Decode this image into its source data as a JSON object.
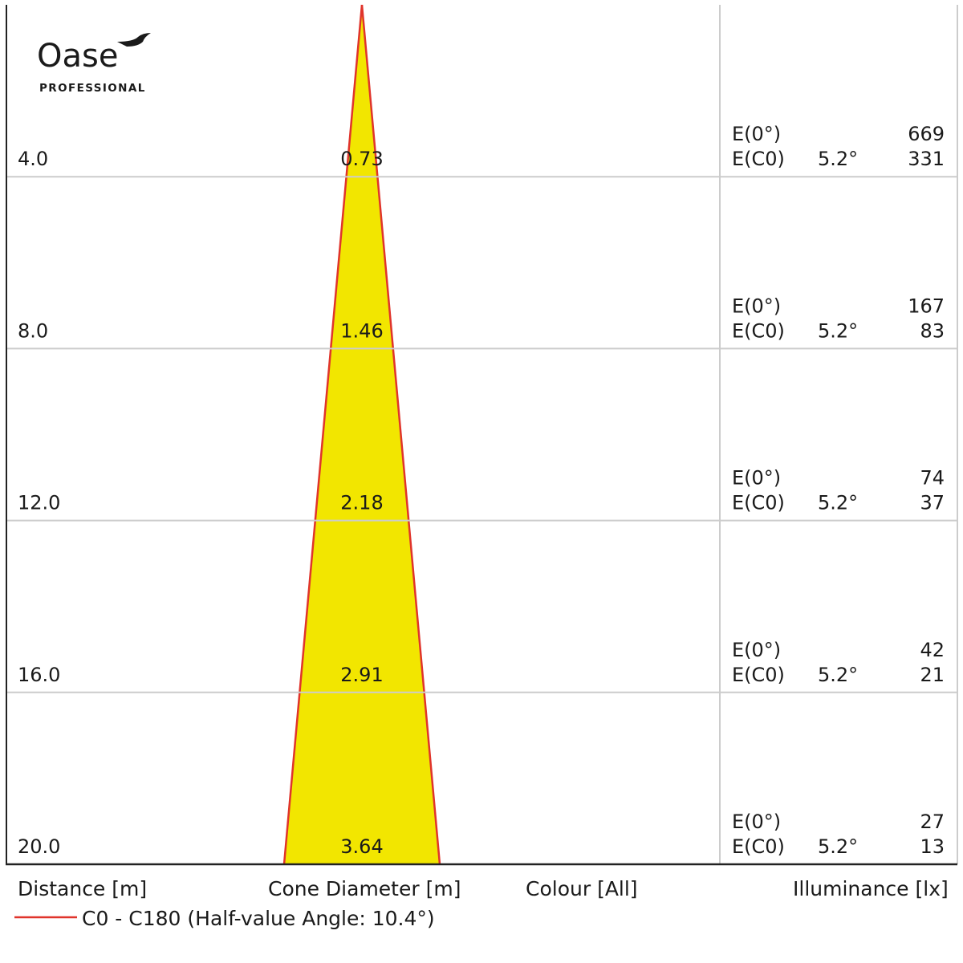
{
  "brand": {
    "name": "Oase",
    "sub": "PROFESSIONAL"
  },
  "footer": {
    "col_distance": "Distance [m]",
    "col_cone": "Cone Diameter [m]",
    "col_colour": "Colour [All]",
    "col_illuminance": "Illuminance [lx]",
    "legend": "C0 - C180 (Half-value Angle: 10.4°)"
  },
  "colors": {
    "cone_fill": "#f2e600",
    "cone_edge": "#e0342b",
    "grid": "#cccccc",
    "frame": "#222222"
  },
  "chart_data": {
    "type": "table",
    "half_value_angle_deg": 10.4,
    "rows": [
      {
        "distance": "4.0",
        "cone_diameter": "0.73",
        "e0_label": "E(0°)",
        "e0": "669",
        "ec0_label": "E(C0)",
        "ec0_angle": "5.2°",
        "ec0": "331"
      },
      {
        "distance": "8.0",
        "cone_diameter": "1.46",
        "e0_label": "E(0°)",
        "e0": "167",
        "ec0_label": "E(C0)",
        "ec0_angle": "5.2°",
        "ec0": "83"
      },
      {
        "distance": "12.0",
        "cone_diameter": "2.18",
        "e0_label": "E(0°)",
        "e0": "74",
        "ec0_label": "E(C0)",
        "ec0_angle": "5.2°",
        "ec0": "37"
      },
      {
        "distance": "16.0",
        "cone_diameter": "2.91",
        "e0_label": "E(0°)",
        "e0": "42",
        "ec0_label": "E(C0)",
        "ec0_angle": "5.2°",
        "ec0": "21"
      },
      {
        "distance": "20.0",
        "cone_diameter": "3.64",
        "e0_label": "E(0°)",
        "e0": "27",
        "ec0_label": "E(C0)",
        "ec0_angle": "5.2°",
        "ec0": "13"
      }
    ]
  }
}
